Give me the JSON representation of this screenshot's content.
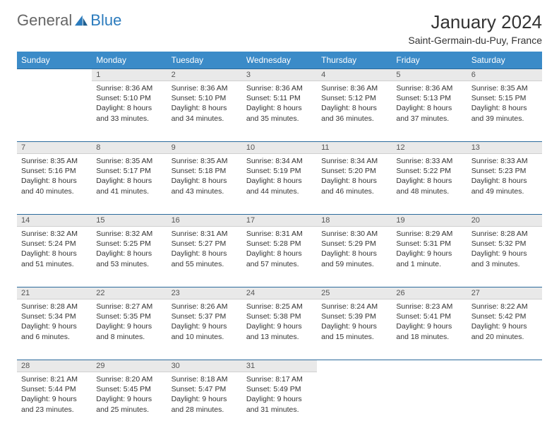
{
  "brand": {
    "part1": "General",
    "part2": "Blue"
  },
  "title": "January 2024",
  "location": "Saint-Germain-du-Puy, France",
  "colors": {
    "header_bg": "#3b8bc8",
    "header_text": "#ffffff",
    "daynum_bg": "#e9e9e9",
    "border_top": "#2b6a9c",
    "text": "#333333",
    "logo_blue": "#2b7bbd"
  },
  "days_of_week": [
    "Sunday",
    "Monday",
    "Tuesday",
    "Wednesday",
    "Thursday",
    "Friday",
    "Saturday"
  ],
  "weeks": [
    {
      "nums": [
        "",
        "1",
        "2",
        "3",
        "4",
        "5",
        "6"
      ],
      "cells": [
        null,
        {
          "sunrise": "Sunrise: 8:36 AM",
          "sunset": "Sunset: 5:10 PM",
          "daylight": "Daylight: 8 hours and 33 minutes."
        },
        {
          "sunrise": "Sunrise: 8:36 AM",
          "sunset": "Sunset: 5:10 PM",
          "daylight": "Daylight: 8 hours and 34 minutes."
        },
        {
          "sunrise": "Sunrise: 8:36 AM",
          "sunset": "Sunset: 5:11 PM",
          "daylight": "Daylight: 8 hours and 35 minutes."
        },
        {
          "sunrise": "Sunrise: 8:36 AM",
          "sunset": "Sunset: 5:12 PM",
          "daylight": "Daylight: 8 hours and 36 minutes."
        },
        {
          "sunrise": "Sunrise: 8:36 AM",
          "sunset": "Sunset: 5:13 PM",
          "daylight": "Daylight: 8 hours and 37 minutes."
        },
        {
          "sunrise": "Sunrise: 8:35 AM",
          "sunset": "Sunset: 5:15 PM",
          "daylight": "Daylight: 8 hours and 39 minutes."
        }
      ]
    },
    {
      "nums": [
        "7",
        "8",
        "9",
        "10",
        "11",
        "12",
        "13"
      ],
      "cells": [
        {
          "sunrise": "Sunrise: 8:35 AM",
          "sunset": "Sunset: 5:16 PM",
          "daylight": "Daylight: 8 hours and 40 minutes."
        },
        {
          "sunrise": "Sunrise: 8:35 AM",
          "sunset": "Sunset: 5:17 PM",
          "daylight": "Daylight: 8 hours and 41 minutes."
        },
        {
          "sunrise": "Sunrise: 8:35 AM",
          "sunset": "Sunset: 5:18 PM",
          "daylight": "Daylight: 8 hours and 43 minutes."
        },
        {
          "sunrise": "Sunrise: 8:34 AM",
          "sunset": "Sunset: 5:19 PM",
          "daylight": "Daylight: 8 hours and 44 minutes."
        },
        {
          "sunrise": "Sunrise: 8:34 AM",
          "sunset": "Sunset: 5:20 PM",
          "daylight": "Daylight: 8 hours and 46 minutes."
        },
        {
          "sunrise": "Sunrise: 8:33 AM",
          "sunset": "Sunset: 5:22 PM",
          "daylight": "Daylight: 8 hours and 48 minutes."
        },
        {
          "sunrise": "Sunrise: 8:33 AM",
          "sunset": "Sunset: 5:23 PM",
          "daylight": "Daylight: 8 hours and 49 minutes."
        }
      ]
    },
    {
      "nums": [
        "14",
        "15",
        "16",
        "17",
        "18",
        "19",
        "20"
      ],
      "cells": [
        {
          "sunrise": "Sunrise: 8:32 AM",
          "sunset": "Sunset: 5:24 PM",
          "daylight": "Daylight: 8 hours and 51 minutes."
        },
        {
          "sunrise": "Sunrise: 8:32 AM",
          "sunset": "Sunset: 5:25 PM",
          "daylight": "Daylight: 8 hours and 53 minutes."
        },
        {
          "sunrise": "Sunrise: 8:31 AM",
          "sunset": "Sunset: 5:27 PM",
          "daylight": "Daylight: 8 hours and 55 minutes."
        },
        {
          "sunrise": "Sunrise: 8:31 AM",
          "sunset": "Sunset: 5:28 PM",
          "daylight": "Daylight: 8 hours and 57 minutes."
        },
        {
          "sunrise": "Sunrise: 8:30 AM",
          "sunset": "Sunset: 5:29 PM",
          "daylight": "Daylight: 8 hours and 59 minutes."
        },
        {
          "sunrise": "Sunrise: 8:29 AM",
          "sunset": "Sunset: 5:31 PM",
          "daylight": "Daylight: 9 hours and 1 minute."
        },
        {
          "sunrise": "Sunrise: 8:28 AM",
          "sunset": "Sunset: 5:32 PM",
          "daylight": "Daylight: 9 hours and 3 minutes."
        }
      ]
    },
    {
      "nums": [
        "21",
        "22",
        "23",
        "24",
        "25",
        "26",
        "27"
      ],
      "cells": [
        {
          "sunrise": "Sunrise: 8:28 AM",
          "sunset": "Sunset: 5:34 PM",
          "daylight": "Daylight: 9 hours and 6 minutes."
        },
        {
          "sunrise": "Sunrise: 8:27 AM",
          "sunset": "Sunset: 5:35 PM",
          "daylight": "Daylight: 9 hours and 8 minutes."
        },
        {
          "sunrise": "Sunrise: 8:26 AM",
          "sunset": "Sunset: 5:37 PM",
          "daylight": "Daylight: 9 hours and 10 minutes."
        },
        {
          "sunrise": "Sunrise: 8:25 AM",
          "sunset": "Sunset: 5:38 PM",
          "daylight": "Daylight: 9 hours and 13 minutes."
        },
        {
          "sunrise": "Sunrise: 8:24 AM",
          "sunset": "Sunset: 5:39 PM",
          "daylight": "Daylight: 9 hours and 15 minutes."
        },
        {
          "sunrise": "Sunrise: 8:23 AM",
          "sunset": "Sunset: 5:41 PM",
          "daylight": "Daylight: 9 hours and 18 minutes."
        },
        {
          "sunrise": "Sunrise: 8:22 AM",
          "sunset": "Sunset: 5:42 PM",
          "daylight": "Daylight: 9 hours and 20 minutes."
        }
      ]
    },
    {
      "nums": [
        "28",
        "29",
        "30",
        "31",
        "",
        "",
        ""
      ],
      "cells": [
        {
          "sunrise": "Sunrise: 8:21 AM",
          "sunset": "Sunset: 5:44 PM",
          "daylight": "Daylight: 9 hours and 23 minutes."
        },
        {
          "sunrise": "Sunrise: 8:20 AM",
          "sunset": "Sunset: 5:45 PM",
          "daylight": "Daylight: 9 hours and 25 minutes."
        },
        {
          "sunrise": "Sunrise: 8:18 AM",
          "sunset": "Sunset: 5:47 PM",
          "daylight": "Daylight: 9 hours and 28 minutes."
        },
        {
          "sunrise": "Sunrise: 8:17 AM",
          "sunset": "Sunset: 5:49 PM",
          "daylight": "Daylight: 9 hours and 31 minutes."
        },
        null,
        null,
        null
      ]
    }
  ]
}
